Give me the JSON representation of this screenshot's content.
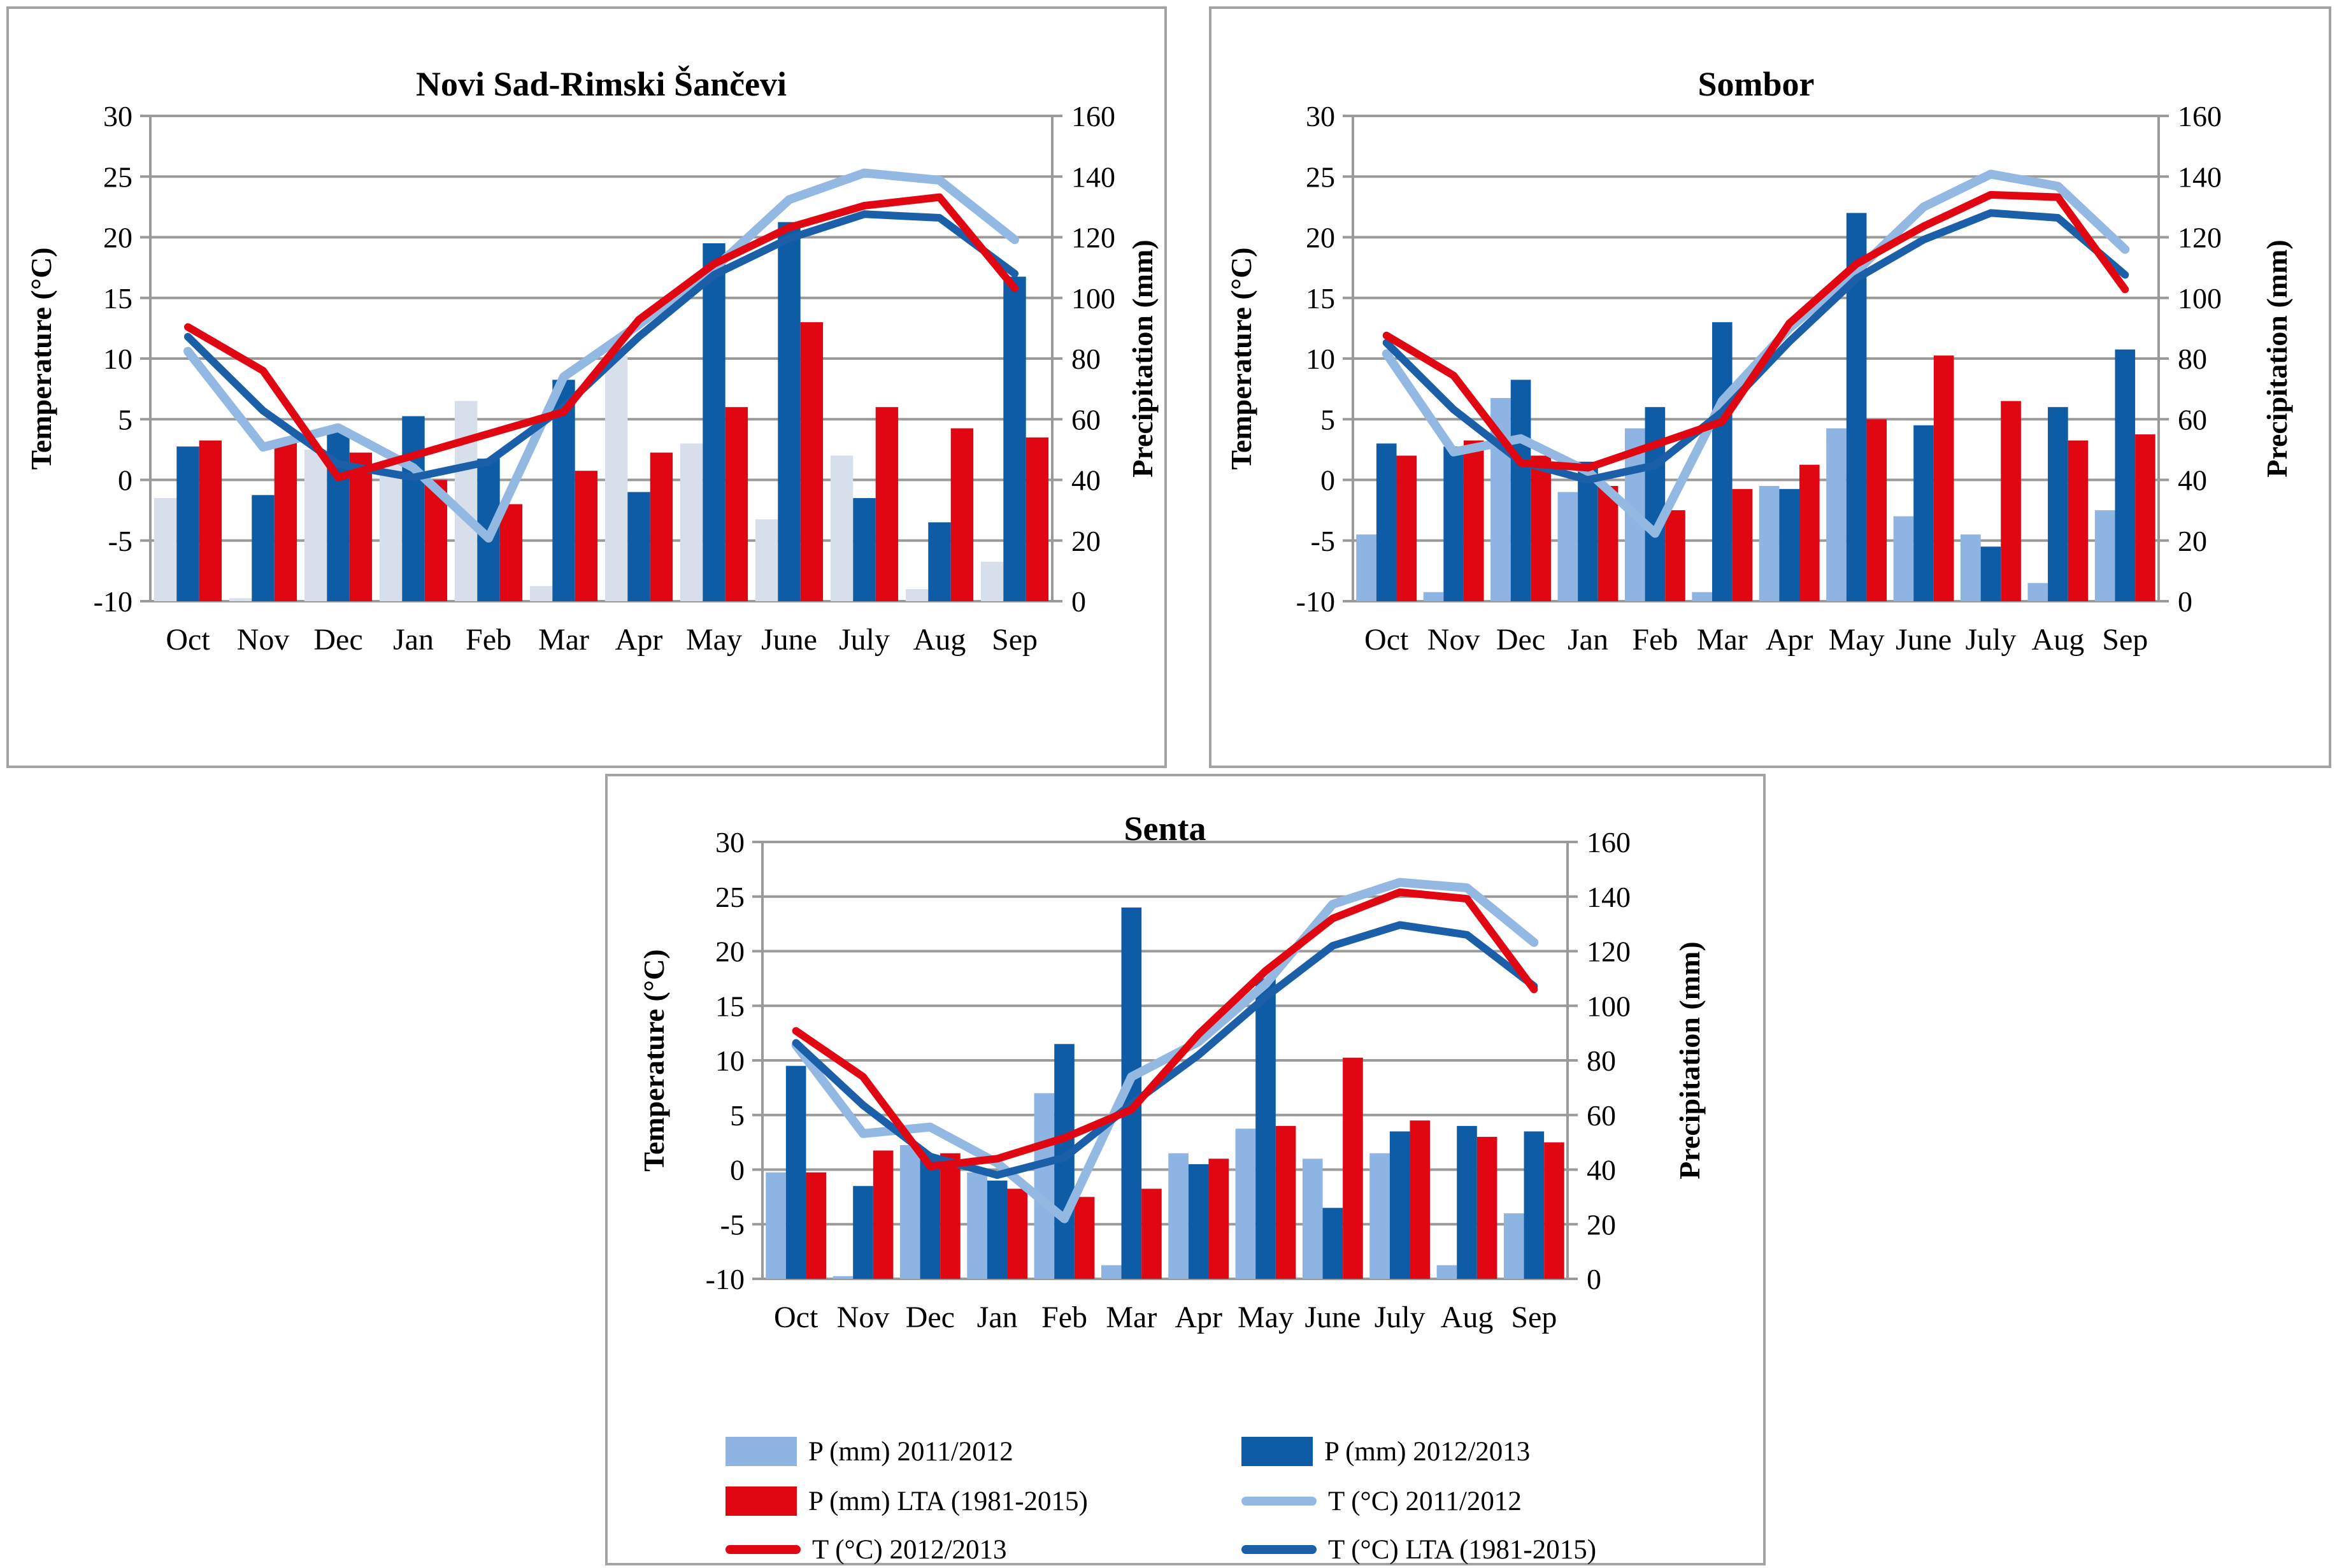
{
  "months": [
    "Oct",
    "Nov",
    "Dec",
    "Jan",
    "Feb",
    "Mar",
    "Apr",
    "May",
    "June",
    "July",
    "Aug",
    "Sep"
  ],
  "axes": {
    "temp_label": "Temperature (°C)",
    "precip_label": "Precipitation (mm)",
    "temp_ticks": [
      30,
      25,
      20,
      15,
      10,
      5,
      0,
      -5,
      -10
    ],
    "precip_ticks": [
      160,
      140,
      120,
      100,
      80,
      60,
      40,
      20,
      0
    ],
    "temp_range": [
      -10,
      30
    ],
    "precip_range": [
      0,
      160
    ],
    "grid": true
  },
  "colors": {
    "bar_p_2011_2012": "#8DB4E2",
    "bar_p_2011_2012_novisad": "#D7DFEB",
    "bar_p_2012_2013": "#0E5BA6",
    "bar_p_lta": "#E00712",
    "line_t_2011_2012": "#93B9E2",
    "line_t_2012_2013": "#E00712",
    "line_t_lta": "#1A5FA8",
    "gridline": "#9A9A9A",
    "panel_border": "#A3A3A3",
    "text": "#000000"
  },
  "legend": {
    "position": "bottom-center",
    "items": [
      {
        "label": "P (mm) 2011/2012",
        "swatch": "bar",
        "color_key": "bar_p_2011_2012",
        "column": 0
      },
      {
        "label": "P (mm) LTA (1981-2015)",
        "swatch": "bar",
        "color_key": "bar_p_lta",
        "column": 0
      },
      {
        "label": "T (°C) 2012/2013",
        "swatch": "line",
        "color_key": "line_t_2012_2013",
        "column": 0
      },
      {
        "label": "P (mm) 2012/2013",
        "swatch": "bar",
        "color_key": "bar_p_2012_2013",
        "column": 1
      },
      {
        "label": "T (°C) 2011/2012",
        "swatch": "line",
        "color_key": "line_t_2011_2012",
        "column": 1
      },
      {
        "label": "T (°C) LTA (1981-2015)",
        "swatch": "line",
        "color_key": "line_t_lta",
        "column": 1
      }
    ]
  },
  "chart_data": [
    {
      "title": "Novi Sad-Rimski Šančevi",
      "type": "bar+line",
      "categories": [
        "Oct",
        "Nov",
        "Dec",
        "Jan",
        "Feb",
        "Mar",
        "Apr",
        "May",
        "June",
        "July",
        "Aug",
        "Sep"
      ],
      "ylim_temp": [
        -10,
        30
      ],
      "ylim_precip": [
        0,
        160
      ],
      "bar_series": [
        {
          "name": "P (mm) 2011/2012",
          "axis": "precip_mm",
          "color_key": "bar_p_2011_2012_novisad",
          "values": [
            34,
            1,
            50,
            46,
            66,
            5,
            81,
            52,
            27,
            48,
            4,
            13
          ]
        },
        {
          "name": "P (mm) 2012/2013",
          "axis": "precip_mm",
          "color_key": "bar_p_2012_2013",
          "values": [
            51,
            35,
            56,
            61,
            47,
            73,
            36,
            118,
            125,
            34,
            26,
            107
          ]
        },
        {
          "name": "P (mm) LTA (1981-2015)",
          "axis": "precip_mm",
          "color_key": "bar_p_lta",
          "values": [
            53,
            53,
            49,
            40,
            32,
            43,
            49,
            64,
            92,
            64,
            57,
            54
          ]
        }
      ],
      "line_series": [
        {
          "name": "T (°C) 2011/2012",
          "axis": "temp_c",
          "color_key": "line_t_2011_2012",
          "values": [
            10.6,
            2.7,
            4.3,
            1.0,
            -4.8,
            8.5,
            12.8,
            17.4,
            23.1,
            25.3,
            24.7,
            19.8
          ]
        },
        {
          "name": "T (°C) LTA (1981-2015)",
          "axis": "temp_c",
          "color_key": "line_t_lta",
          "values": [
            11.8,
            5.7,
            1.3,
            0.2,
            1.5,
            6.0,
            11.8,
            16.9,
            19.9,
            21.9,
            21.6,
            17.0
          ]
        },
        {
          "name": "T (°C) 2012/2013",
          "axis": "temp_c",
          "color_key": "line_t_2012_2013",
          "values": [
            12.6,
            9.0,
            0.2,
            2.0,
            3.8,
            5.6,
            13.2,
            17.8,
            20.8,
            22.6,
            23.3,
            15.8
          ]
        }
      ]
    },
    {
      "title": "Sombor",
      "type": "bar+line",
      "categories": [
        "Oct",
        "Nov",
        "Dec",
        "Jan",
        "Feb",
        "Mar",
        "Apr",
        "May",
        "June",
        "July",
        "Aug",
        "Sep"
      ],
      "ylim_temp": [
        -10,
        30
      ],
      "ylim_precip": [
        0,
        160
      ],
      "bar_series": [
        {
          "name": "P (mm) 2011/2012",
          "axis": "precip_mm",
          "color_key": "bar_p_2011_2012",
          "values": [
            22,
            3,
            67,
            36,
            57,
            3,
            38,
            57,
            28,
            22,
            6,
            30
          ]
        },
        {
          "name": "P (mm) 2012/2013",
          "axis": "precip_mm",
          "color_key": "bar_p_2012_2013",
          "values": [
            52,
            51,
            73,
            46,
            64,
            92,
            37,
            128,
            58,
            18,
            64,
            83
          ]
        },
        {
          "name": "P (mm) LTA (1981-2015)",
          "axis": "precip_mm",
          "color_key": "bar_p_lta",
          "values": [
            48,
            53,
            48,
            38,
            30,
            37,
            45,
            60,
            81,
            66,
            53,
            55
          ]
        }
      ],
      "line_series": [
        {
          "name": "T (°C) 2011/2012",
          "axis": "temp_c",
          "color_key": "line_t_2011_2012",
          "values": [
            10.4,
            2.3,
            3.4,
            0.7,
            -4.4,
            6.5,
            12.5,
            17.2,
            22.5,
            25.2,
            24.2,
            19.0
          ]
        },
        {
          "name": "T (°C) LTA (1981-2015)",
          "axis": "temp_c",
          "color_key": "line_t_lta",
          "values": [
            11.3,
            5.8,
            1.5,
            0.0,
            1.2,
            5.6,
            11.4,
            16.6,
            19.8,
            22.0,
            21.6,
            16.9
          ]
        },
        {
          "name": "T (°C) 2012/2013",
          "axis": "temp_c",
          "color_key": "line_t_2012_2013",
          "values": [
            11.9,
            8.6,
            1.4,
            1.0,
            2.9,
            4.8,
            12.9,
            17.8,
            20.9,
            23.5,
            23.3,
            15.7
          ]
        }
      ]
    },
    {
      "title": "Senta",
      "type": "bar+line",
      "categories": [
        "Oct",
        "Nov",
        "Dec",
        "Jan",
        "Feb",
        "Mar",
        "Apr",
        "May",
        "June",
        "July",
        "Aug",
        "Sep"
      ],
      "ylim_temp": [
        -10,
        30
      ],
      "ylim_precip": [
        0,
        160
      ],
      "bar_series": [
        {
          "name": "P (mm) 2011/2012",
          "axis": "precip_mm",
          "color_key": "bar_p_2011_2012",
          "values": [
            39,
            1,
            49,
            39,
            68,
            5,
            46,
            55,
            44,
            46,
            5,
            24
          ]
        },
        {
          "name": "P (mm) 2012/2013",
          "axis": "precip_mm",
          "color_key": "bar_p_2012_2013",
          "values": [
            78,
            34,
            45,
            36,
            86,
            136,
            42,
            110,
            26,
            54,
            56,
            54
          ]
        },
        {
          "name": "P (mm) LTA (1981-2015)",
          "axis": "precip_mm",
          "color_key": "bar_p_lta",
          "values": [
            39,
            47,
            46,
            33,
            30,
            33,
            44,
            56,
            81,
            58,
            52,
            50
          ]
        }
      ],
      "line_series": [
        {
          "name": "T (°C) 2011/2012",
          "axis": "temp_c",
          "color_key": "line_t_2011_2012",
          "values": [
            11.4,
            3.3,
            3.9,
            0.6,
            -4.5,
            8.5,
            11.7,
            17.0,
            24.3,
            26.3,
            25.8,
            20.8
          ]
        },
        {
          "name": "T (°C) LTA (1981-2015)",
          "axis": "temp_c",
          "color_key": "line_t_lta",
          "values": [
            11.6,
            5.9,
            1.2,
            -0.5,
            1.1,
            6.0,
            10.5,
            15.8,
            20.5,
            22.4,
            21.5,
            16.8
          ]
        },
        {
          "name": "T (°C) 2012/2013",
          "axis": "temp_c",
          "color_key": "line_t_2012_2013",
          "values": [
            12.7,
            8.5,
            0.3,
            1.0,
            2.9,
            5.5,
            12.4,
            18.2,
            23.0,
            25.4,
            24.8,
            16.5
          ]
        }
      ]
    }
  ]
}
